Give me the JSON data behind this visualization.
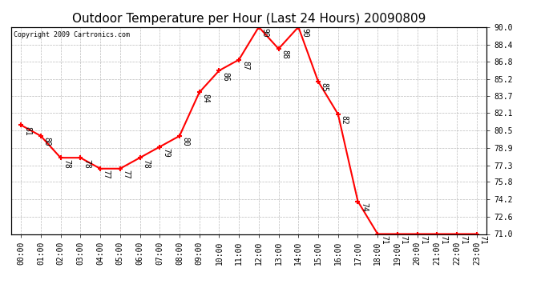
{
  "title": "Outdoor Temperature per Hour (Last 24 Hours) 20090809",
  "copyright": "Copyright 2009 Cartronics.com",
  "hours": [
    "00:00",
    "01:00",
    "02:00",
    "03:00",
    "04:00",
    "05:00",
    "06:00",
    "07:00",
    "08:00",
    "09:00",
    "10:00",
    "11:00",
    "12:00",
    "13:00",
    "14:00",
    "15:00",
    "16:00",
    "17:00",
    "18:00",
    "19:00",
    "20:00",
    "21:00",
    "22:00",
    "23:00"
  ],
  "temps": [
    81,
    80,
    78,
    78,
    77,
    77,
    78,
    79,
    80,
    84,
    86,
    87,
    90,
    88,
    90,
    85,
    82,
    74,
    71,
    71,
    71,
    71,
    71,
    71
  ],
  "ylim_min": 71.0,
  "ylim_max": 90.0,
  "line_color": "red",
  "marker_color": "red",
  "bg_color": "white",
  "grid_color": "#bbbbbb",
  "title_fontsize": 11,
  "copyright_fontsize": 6,
  "tick_fontsize": 7,
  "annotation_fontsize": 7,
  "yticks": [
    71.0,
    72.6,
    74.2,
    75.8,
    77.3,
    78.9,
    80.5,
    82.1,
    83.7,
    85.2,
    86.8,
    88.4,
    90.0
  ]
}
